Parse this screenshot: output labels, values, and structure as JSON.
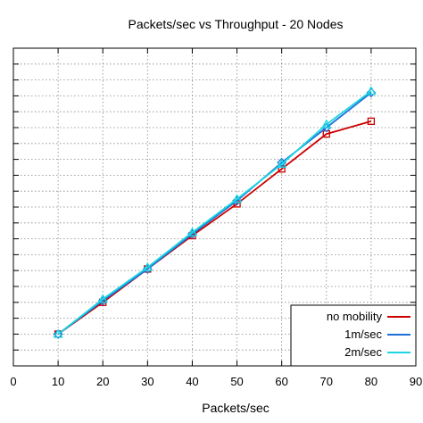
{
  "chart_data": {
    "type": "line",
    "title": "Packets/sec vs Throughput - 20 Nodes",
    "xlabel": "Packets/sec",
    "ylabel": "",
    "x": [
      10,
      20,
      30,
      40,
      50,
      60,
      70,
      80
    ],
    "xlim": [
      0,
      90
    ],
    "xticks": [
      0,
      10,
      20,
      30,
      40,
      50,
      60,
      70,
      80,
      90
    ],
    "xtick_labels": [
      "0",
      "10",
      "20",
      "30",
      "40",
      "50",
      "60",
      "70",
      "80",
      "90"
    ],
    "ylim": [
      0,
      20
    ],
    "y_tick_count": 21,
    "y_tick_labels_visible": false,
    "grid": true,
    "legend_position": "bottom-right",
    "series": [
      {
        "name": "no mobility",
        "color": "#cc0000",
        "marker": "square",
        "values": [
          2.0,
          4.0,
          6.1,
          8.2,
          10.2,
          12.4,
          14.6,
          15.4
        ]
      },
      {
        "name": "1m/sec",
        "color": "#1f6fd8",
        "marker": "diamond",
        "values": [
          2.0,
          4.1,
          6.1,
          8.3,
          10.4,
          12.8,
          15.0,
          17.2
        ]
      },
      {
        "name": "2m/sec",
        "color": "#19d6e0",
        "marker": "triangle",
        "values": [
          2.0,
          4.2,
          6.2,
          8.4,
          10.5,
          12.7,
          15.2,
          17.3
        ]
      }
    ]
  }
}
